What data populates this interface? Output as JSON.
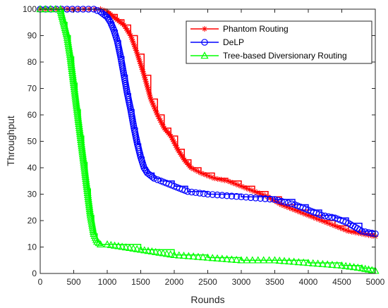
{
  "chart_data": {
    "type": "line",
    "xlabel": "Rounds",
    "ylabel": "Throughput",
    "xlim": [
      0,
      5000
    ],
    "ylim": [
      0,
      100
    ],
    "xticks": [
      0,
      500,
      1000,
      1500,
      2000,
      2500,
      3000,
      3500,
      4000,
      4500,
      5000
    ],
    "yticks": [
      0,
      10,
      20,
      30,
      40,
      50,
      60,
      70,
      80,
      90,
      100
    ],
    "grid": false,
    "legend_position": "top-right",
    "series": [
      {
        "name": "Phantom Routing",
        "color": "#ff0000",
        "marker": "asterisk",
        "x": [
          0,
          900,
          1000,
          1050,
          1150,
          1250,
          1350,
          1450,
          1550,
          1650,
          1750,
          1850,
          1950,
          2050,
          2150,
          2250,
          2400,
          2600,
          2800,
          3000,
          3200,
          3400,
          3600,
          3800,
          4000,
          4200,
          4400,
          4600,
          4800,
          5000
        ],
        "y": [
          100,
          100,
          99,
          98,
          96,
          94,
          90,
          83,
          75,
          66,
          60,
          55,
          52,
          47,
          43,
          40,
          38,
          36,
          35,
          33,
          31,
          29,
          26,
          24,
          22,
          20,
          18,
          16,
          15,
          14
        ]
      },
      {
        "name": "DeLP",
        "color": "#0000ff",
        "marker": "circle",
        "x": [
          0,
          800,
          900,
          950,
          1000,
          1050,
          1100,
          1150,
          1200,
          1250,
          1300,
          1350,
          1400,
          1450,
          1500,
          1550,
          1600,
          1700,
          1800,
          2000,
          2200,
          2500,
          3000,
          3500,
          3800,
          4000,
          4200,
          4400,
          4600,
          4800,
          5000
        ],
        "y": [
          100,
          100,
          99,
          98,
          97,
          95,
          92,
          88,
          82,
          75,
          68,
          62,
          55,
          49,
          44,
          40,
          38,
          36,
          35,
          33,
          31,
          30,
          29,
          28,
          26,
          24,
          22,
          21,
          19,
          16,
          15
        ]
      },
      {
        "name": "Tree-based Diversionary Routing",
        "color": "#00ff00",
        "marker": "triangle",
        "x": [
          0,
          300,
          350,
          400,
          450,
          500,
          550,
          600,
          650,
          700,
          750,
          800,
          850,
          900,
          1000,
          1500,
          2000,
          2500,
          3000,
          3500,
          4000,
          4500,
          4800,
          5000
        ],
        "y": [
          100,
          100,
          95,
          90,
          82,
          72,
          62,
          52,
          42,
          32,
          22,
          15,
          12,
          11,
          11,
          9,
          7,
          6,
          5,
          5,
          4,
          3,
          2,
          1
        ]
      }
    ]
  }
}
